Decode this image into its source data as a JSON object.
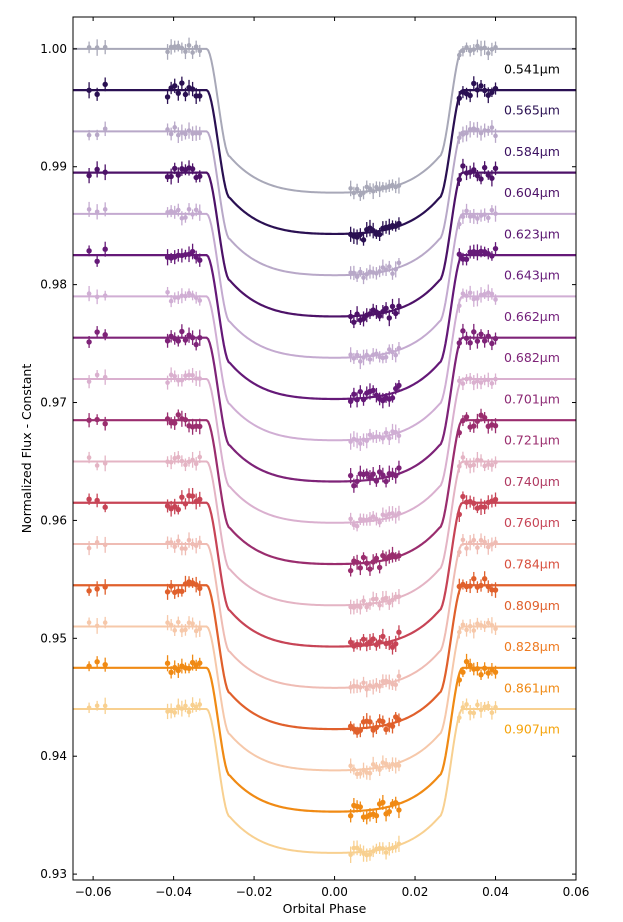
{
  "chart_data": {
    "type": "line",
    "title": "",
    "xlabel": "Orbital Phase",
    "ylabel": "Normalized Flux - Constant",
    "xlim": [
      -0.065,
      0.06
    ],
    "ylim": [
      0.9295,
      1.0027
    ],
    "x_ticks": [
      -0.06,
      -0.04,
      -0.02,
      0.0,
      0.02,
      0.04,
      0.06
    ],
    "x_tick_labels": [
      "−0.06",
      "−0.04",
      "−0.02",
      "0.00",
      "0.02",
      "0.04",
      "0.06"
    ],
    "y_ticks": [
      0.93,
      0.94,
      0.95,
      0.96,
      0.97,
      0.98,
      0.99,
      1.0
    ],
    "y_tick_labels": [
      "0.93",
      "0.94",
      "0.95",
      "0.96",
      "0.97",
      "0.98",
      "0.99",
      "1.00"
    ],
    "transit": {
      "depth": 0.0122,
      "t1": 0.0318,
      "t2": 0.026
    },
    "series": [
      {
        "name": "0.541μm",
        "label_html": "0.541",
        "label_unit": "μm",
        "baseline": 1.0,
        "color": "#a8a8b8",
        "label_color": "#000000",
        "faded": true
      },
      {
        "name": "0.565μm",
        "label_html": "0.565",
        "label_unit": "μm",
        "baseline": 0.9965,
        "color": "#2a1052",
        "label_color": "#2a1052",
        "faded": false
      },
      {
        "name": "0.584μm",
        "label_html": "0.584",
        "label_unit": "μm",
        "baseline": 0.993,
        "color": "#b8a8c8",
        "label_color": "#3a1060",
        "faded": true
      },
      {
        "name": "0.604μm",
        "label_html": "0.604",
        "label_unit": "μm",
        "baseline": 0.9895,
        "color": "#4d1268",
        "label_color": "#4d1268",
        "faded": false
      },
      {
        "name": "0.623μm",
        "label_html": "0.623",
        "label_unit": "μm",
        "baseline": 0.986,
        "color": "#c4aad0",
        "label_color": "#591470",
        "faded": true
      },
      {
        "name": "0.643μm",
        "label_html": "0.643",
        "label_unit": "μm",
        "baseline": 0.9825,
        "color": "#651978",
        "label_color": "#651978",
        "faded": false
      },
      {
        "name": "0.662μm",
        "label_html": "0.662",
        "label_unit": "μm",
        "baseline": 0.979,
        "color": "#d0aed4",
        "label_color": "#721f7a",
        "faded": true
      },
      {
        "name": "0.682μm",
        "label_html": "0.682",
        "label_unit": "μm",
        "baseline": 0.9755,
        "color": "#7e2378",
        "label_color": "#7e2378",
        "faded": false
      },
      {
        "name": "0.701μm",
        "label_html": "0.701",
        "label_unit": "μm",
        "baseline": 0.972,
        "color": "#dab0cf",
        "label_color": "#8c2974",
        "faded": true
      },
      {
        "name": "0.721μm",
        "label_html": "0.721",
        "label_unit": "μm",
        "baseline": 0.9685,
        "color": "#9a2d6e",
        "label_color": "#9a2d6e",
        "faded": false
      },
      {
        "name": "0.740μm",
        "label_html": "0.740",
        "label_unit": "μm",
        "baseline": 0.965,
        "color": "#e4b4c4",
        "label_color": "#b03a62",
        "faded": true
      },
      {
        "name": "0.760μm",
        "label_html": "0.760",
        "label_unit": "μm",
        "baseline": 0.9615,
        "color": "#c74456",
        "label_color": "#c74456",
        "faded": false
      },
      {
        "name": "0.784μm",
        "label_html": "0.784",
        "label_unit": "μm",
        "baseline": 0.958,
        "color": "#efbcb4",
        "label_color": "#d8503e",
        "faded": true
      },
      {
        "name": "0.809μm",
        "label_html": "0.809",
        "label_unit": "μm",
        "baseline": 0.9545,
        "color": "#e0602c",
        "label_color": "#e0602c",
        "faded": false
      },
      {
        "name": "0.828μm",
        "label_html": "0.828",
        "label_unit": "μm",
        "baseline": 0.951,
        "color": "#f6c8aa",
        "label_color": "#ee7a20",
        "faded": true
      },
      {
        "name": "0.861μm",
        "label_html": "0.861",
        "label_unit": "μm",
        "baseline": 0.9475,
        "color": "#f08a14",
        "label_color": "#f08a14",
        "faded": false
      },
      {
        "name": "0.907μm",
        "label_html": "0.907",
        "label_unit": "μm",
        "baseline": 0.944,
        "color": "#f8d090",
        "label_color": "#f5a30a",
        "faded": true
      }
    ]
  }
}
